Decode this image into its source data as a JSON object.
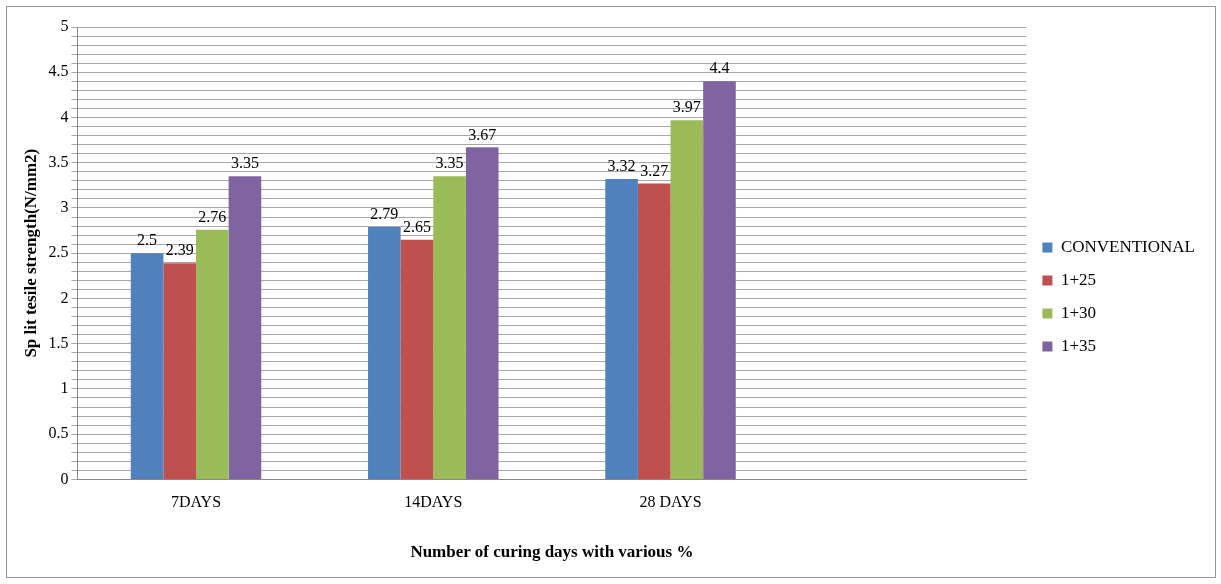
{
  "chart_data": {
    "type": "bar",
    "xlabel": "Number of curing days with various %",
    "ylabel": "Sp lit tesile strength(N/mm2)",
    "categories": [
      "7DAYS",
      "14DAYS",
      "28 DAYS",
      null
    ],
    "series": [
      {
        "name": "CONVENTIONAL",
        "color": "#4f81bd",
        "values": [
          2.5,
          2.79,
          3.32,
          null
        ]
      },
      {
        "name": "1+25",
        "color": "#c0504d",
        "values": [
          2.39,
          2.65,
          3.27,
          null
        ]
      },
      {
        "name": "1+30",
        "color": "#9bbb59",
        "values": [
          2.76,
          3.35,
          3.97,
          null
        ]
      },
      {
        "name": "1+35",
        "color": "#8064a2",
        "values": [
          3.35,
          3.67,
          4.4,
          null
        ]
      }
    ],
    "ylim": [
      0,
      5
    ],
    "yticks": [
      0,
      {
        "value": 0.1,
        "label": null
      },
      {
        "value": 0.2,
        "label": null
      },
      {
        "value": 0.3,
        "label": null
      },
      {
        "value": 0.4,
        "label": null
      },
      0.5,
      {
        "value": 0.6,
        "label": null
      },
      {
        "value": 0.7,
        "label": null
      },
      {
        "value": 0.8,
        "label": null
      },
      {
        "value": 0.9,
        "label": null
      },
      1,
      {
        "value": 1.1,
        "label": null
      },
      {
        "value": 1.2,
        "label": null
      },
      {
        "value": 1.3,
        "label": null
      },
      {
        "value": 1.4,
        "label": null
      },
      1.5,
      {
        "value": 1.6,
        "label": null
      },
      {
        "value": 1.7,
        "label": null
      },
      {
        "value": 1.8,
        "label": null
      },
      {
        "value": 1.9,
        "label": null
      },
      2,
      {
        "value": 2.1,
        "label": null
      },
      {
        "value": 2.2,
        "label": null
      },
      {
        "value": 2.3,
        "label": null
      },
      {
        "value": 2.4,
        "label": null
      },
      2.5,
      {
        "value": 2.6,
        "label": null
      },
      {
        "value": 2.7,
        "label": null
      },
      {
        "value": 2.8,
        "label": null
      },
      {
        "value": 2.9,
        "label": null
      },
      3,
      {
        "value": 3.1,
        "label": null
      },
      {
        "value": 3.2,
        "label": null
      },
      {
        "value": 3.3,
        "label": null
      },
      {
        "value": 3.4,
        "label": null
      },
      3.5,
      {
        "value": 3.6,
        "label": null
      },
      {
        "value": 3.7,
        "label": null
      },
      {
        "value": 3.8,
        "label": null
      },
      {
        "value": 3.9,
        "label": null
      },
      4,
      {
        "value": 4.1,
        "label": null
      },
      {
        "value": 4.2,
        "label": null
      },
      {
        "value": 4.3,
        "label": null
      },
      {
        "value": 4.4,
        "label": null
      },
      4.5,
      {
        "value": 4.6,
        "label": null
      },
      {
        "value": 4.7,
        "label": null
      },
      {
        "value": 4.8,
        "label": null
      },
      {
        "value": 4.9,
        "label": null
      },
      5
    ],
    "grid": "y",
    "legend": "right",
    "data_labels": true
  }
}
